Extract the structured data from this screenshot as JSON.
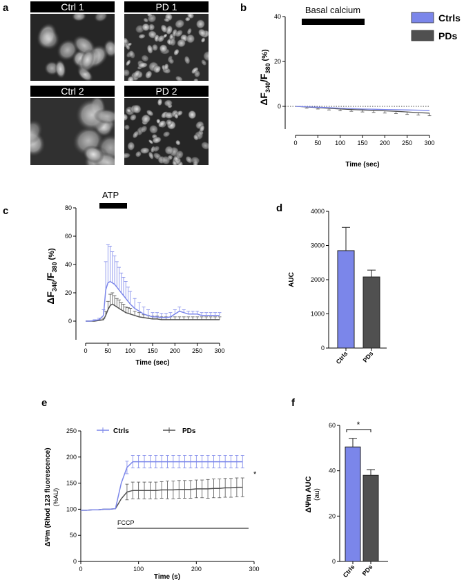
{
  "panel_letters": {
    "a": "a",
    "b": "b",
    "c": "c",
    "d": "d",
    "e": "e",
    "f": "f"
  },
  "micrographs": [
    "Ctrl 1",
    "PD 1",
    "Ctrl 2",
    "PD 2"
  ],
  "colors": {
    "ctrl": "#7b86ea",
    "pd": "#505050",
    "axis": "#000000"
  },
  "chart_data": [
    {
      "id": "b",
      "type": "line",
      "xlabel": "Time (sec)",
      "ylabel": "ΔF340/F380 (%)",
      "ylabel_parts": {
        "a": "ΔF",
        "s1": "340",
        "b": "/F",
        "s2": "380",
        "c": " (%)"
      },
      "annotation": "Basal calcium",
      "xlim": [
        0,
        300
      ],
      "ylim": [
        -10,
        40
      ],
      "xticks": [
        0,
        50,
        100,
        150,
        200,
        250,
        300
      ],
      "yticks": [
        0,
        20,
        40
      ],
      "zero_dotted_line": true,
      "legend_position": "top-right",
      "legend": [
        "Ctrls",
        "PDs"
      ],
      "x": [
        0,
        25,
        50,
        75,
        100,
        125,
        150,
        175,
        200,
        225,
        250,
        275,
        300
      ],
      "series": [
        {
          "name": "Ctrls",
          "values": [
            0,
            -0.2,
            -0.4,
            -0.6,
            -0.8,
            -1.0,
            -1.2,
            -1.3,
            -1.4,
            -1.5,
            -1.6,
            -1.7,
            -1.8
          ]
        },
        {
          "name": "PDs",
          "values": [
            0,
            -0.3,
            -0.6,
            -0.9,
            -1.2,
            -1.4,
            -1.6,
            -1.8,
            -2.0,
            -2.2,
            -2.5,
            -2.8,
            -3.0
          ],
          "err": [
            0,
            0.5,
            0.6,
            0.7,
            0.8,
            0.8,
            0.9,
            0.9,
            1.0,
            1.0,
            1.1,
            1.1,
            1.2
          ]
        }
      ]
    },
    {
      "id": "c",
      "type": "line",
      "xlabel": "Time (sec)",
      "ylabel": "ΔF340/F380 (%)",
      "ylabel_parts": {
        "a": "ΔF",
        "s1": "340",
        "b": "/F",
        "s2": "380",
        "c": " (%)"
      },
      "annotation": "ATP",
      "xlim": [
        0,
        300
      ],
      "ylim": [
        -10,
        80
      ],
      "xticks": [
        0,
        50,
        100,
        150,
        200,
        250,
        300
      ],
      "yticks": [
        0,
        20,
        40,
        60,
        80
      ],
      "x": [
        0,
        10,
        20,
        30,
        40,
        45,
        50,
        55,
        60,
        65,
        70,
        75,
        80,
        85,
        90,
        95,
        100,
        110,
        120,
        130,
        140,
        150,
        160,
        170,
        180,
        190,
        200,
        210,
        220,
        230,
        240,
        250,
        260,
        270,
        280,
        290,
        300
      ],
      "series": [
        {
          "name": "Ctrls",
          "values": [
            0,
            0,
            0.5,
            1,
            4,
            22,
            27,
            28,
            27,
            26,
            24,
            22,
            20,
            18,
            16,
            14,
            12,
            9,
            7,
            5,
            4,
            3,
            3,
            2.5,
            2.5,
            3,
            5,
            7,
            6,
            5,
            5,
            5,
            4,
            4,
            4,
            4,
            4
          ],
          "err": [
            0,
            0,
            0.5,
            1,
            4,
            20,
            27,
            25,
            22,
            20,
            18,
            16,
            14,
            13,
            12,
            10,
            9,
            7,
            6,
            5,
            4,
            3,
            3,
            3,
            3,
            3,
            3,
            3,
            2,
            2,
            2,
            2,
            2,
            2,
            2,
            2,
            2
          ]
        },
        {
          "name": "PDs",
          "values": [
            0,
            0,
            0,
            0.5,
            1,
            4,
            8,
            11,
            12,
            11,
            10,
            9,
            8,
            7,
            6,
            5.5,
            5,
            4,
            3,
            2.5,
            2,
            1.5,
            1.5,
            1,
            1,
            1,
            1,
            1,
            1,
            1,
            1,
            1,
            1,
            1,
            1,
            1,
            1
          ],
          "err": [
            0,
            0,
            0,
            0.5,
            1,
            3,
            6,
            8,
            8,
            7,
            6,
            6,
            5,
            5,
            4,
            4,
            4,
            3,
            3,
            2,
            2,
            2,
            2,
            2,
            2,
            2,
            2,
            2,
            2,
            2,
            2,
            2,
            2,
            2,
            2,
            2,
            2
          ]
        }
      ]
    },
    {
      "id": "d",
      "type": "bar",
      "ylabel": "AUC",
      "categories": [
        "Ctrls",
        "PDs"
      ],
      "values": [
        2850,
        2080
      ],
      "err": [
        680,
        200
      ],
      "ylim": [
        0,
        4000
      ],
      "yticks": [
        0,
        1000,
        2000,
        3000,
        4000
      ]
    },
    {
      "id": "e",
      "type": "line",
      "xlabel": "Time (s)",
      "ylabel": "ΔΨm (Rhod 123 fluorescence)",
      "ylabel2": "(%AU)",
      "annotation": "FCCP",
      "significance": "*",
      "legend_position": "top",
      "legend": [
        "Ctrls",
        "PDs"
      ],
      "xlim": [
        0,
        300
      ],
      "ylim": [
        0,
        250
      ],
      "xticks": [
        0,
        100,
        200,
        300
      ],
      "yticks": [
        0,
        50,
        100,
        150,
        200,
        250
      ],
      "x": [
        0,
        10,
        20,
        30,
        40,
        50,
        60,
        70,
        80,
        90,
        100,
        110,
        120,
        130,
        140,
        150,
        160,
        170,
        180,
        190,
        200,
        210,
        220,
        230,
        240,
        250,
        260,
        270,
        280
      ],
      "series": [
        {
          "name": "Ctrls",
          "values": [
            98,
            98,
            99,
            99,
            100,
            100,
            101,
            150,
            180,
            191,
            191,
            191,
            191,
            191,
            191,
            191,
            191,
            191,
            191,
            191,
            191,
            191,
            191,
            191,
            191,
            191,
            191,
            191,
            191
          ],
          "err": [
            0,
            0,
            0,
            0,
            0,
            0,
            0,
            0,
            12,
            12,
            12,
            12,
            12,
            12,
            12,
            12,
            12,
            12,
            12,
            12,
            12,
            12,
            12,
            12,
            12,
            12,
            12,
            12,
            12
          ]
        },
        {
          "name": "PDs",
          "values": [
            98,
            98,
            99,
            99,
            100,
            100,
            101,
            120,
            133,
            136,
            136,
            136,
            136,
            136,
            137,
            137,
            137,
            138,
            138,
            138,
            139,
            139,
            139,
            140,
            140,
            141,
            141,
            142,
            142
          ],
          "err": [
            0,
            0,
            0,
            0,
            0,
            0,
            0,
            0,
            15,
            16,
            16,
            16,
            16,
            16,
            16,
            17,
            17,
            17,
            17,
            17,
            17,
            17,
            18,
            18,
            18,
            18,
            18,
            18,
            18
          ]
        }
      ]
    },
    {
      "id": "f",
      "type": "bar",
      "ylabel": "ΔΨm AUC",
      "ylabel2": "(au)",
      "significance": "*",
      "categories": [
        "Ctrls",
        "PDs"
      ],
      "values": [
        50.5,
        38
      ],
      "err": [
        3.8,
        2.5
      ],
      "ylim": [
        0,
        60
      ],
      "yticks": [
        0,
        20,
        40,
        60
      ]
    }
  ]
}
